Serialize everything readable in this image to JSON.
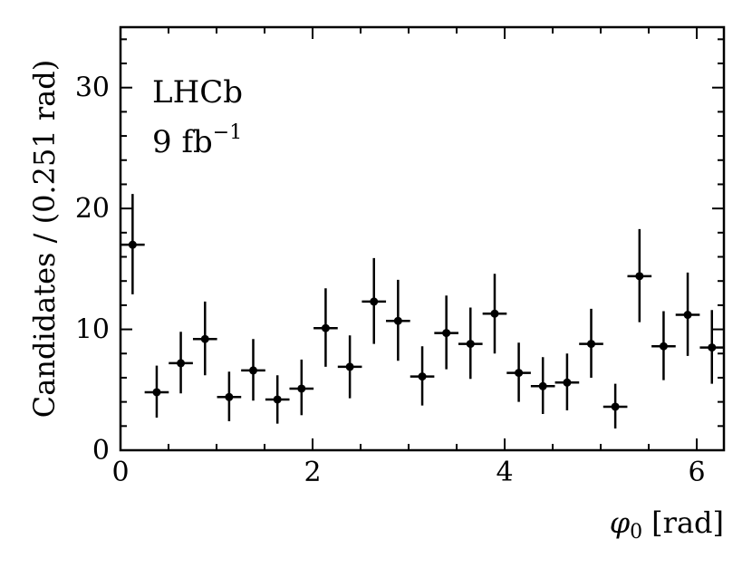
{
  "chart_data": {
    "type": "scatter",
    "style": "points-with-error-bars",
    "xlabel_symbol": "φ",
    "xlabel_subscript": "0",
    "xlabel_unit": "[rad]",
    "ylabel": "Candidates / (0.251 rad)",
    "xlim": [
      0,
      6.283
    ],
    "ylim": [
      0,
      35
    ],
    "xticks": [
      0,
      2,
      4,
      6
    ],
    "yticks": [
      0,
      10,
      20,
      30
    ],
    "x_minor_step": 0.5,
    "y_minor_step": 2,
    "bin_width": 0.2513,
    "annotations": {
      "experiment": "LHCb",
      "lumi_value": "9 fb",
      "lumi_exponent": "−1"
    },
    "series": [
      {
        "color": "#000000",
        "points": [
          {
            "x": 0.126,
            "y": 17.0,
            "err_up": 4.2,
            "err_down": 4.1
          },
          {
            "x": 0.377,
            "y": 4.8,
            "err_up": 2.2,
            "err_down": 2.1
          },
          {
            "x": 0.628,
            "y": 7.2,
            "err_up": 2.6,
            "err_down": 2.5
          },
          {
            "x": 0.88,
            "y": 9.2,
            "err_up": 3.1,
            "err_down": 3.0
          },
          {
            "x": 1.131,
            "y": 4.4,
            "err_up": 2.1,
            "err_down": 2.0
          },
          {
            "x": 1.382,
            "y": 6.6,
            "err_up": 2.6,
            "err_down": 2.5
          },
          {
            "x": 1.634,
            "y": 4.2,
            "err_up": 2.0,
            "err_down": 2.0
          },
          {
            "x": 1.885,
            "y": 5.1,
            "err_up": 2.4,
            "err_down": 2.2
          },
          {
            "x": 2.136,
            "y": 10.1,
            "err_up": 3.3,
            "err_down": 3.2
          },
          {
            "x": 2.388,
            "y": 6.9,
            "err_up": 2.6,
            "err_down": 2.6
          },
          {
            "x": 2.639,
            "y": 12.3,
            "err_up": 3.6,
            "err_down": 3.5
          },
          {
            "x": 2.89,
            "y": 10.7,
            "err_up": 3.4,
            "err_down": 3.3
          },
          {
            "x": 3.142,
            "y": 6.1,
            "err_up": 2.5,
            "err_down": 2.4
          },
          {
            "x": 3.393,
            "y": 9.7,
            "err_up": 3.1,
            "err_down": 3.0
          },
          {
            "x": 3.644,
            "y": 8.8,
            "err_up": 3.0,
            "err_down": 2.9
          },
          {
            "x": 3.896,
            "y": 11.3,
            "err_up": 3.3,
            "err_down": 3.3
          },
          {
            "x": 4.147,
            "y": 6.4,
            "err_up": 2.5,
            "err_down": 2.4
          },
          {
            "x": 4.398,
            "y": 5.3,
            "err_up": 2.4,
            "err_down": 2.3
          },
          {
            "x": 4.65,
            "y": 5.6,
            "err_up": 2.4,
            "err_down": 2.3
          },
          {
            "x": 4.901,
            "y": 8.8,
            "err_up": 2.9,
            "err_down": 2.8
          },
          {
            "x": 5.152,
            "y": 3.6,
            "err_up": 1.9,
            "err_down": 1.8
          },
          {
            "x": 5.404,
            "y": 14.4,
            "err_up": 3.9,
            "err_down": 3.8
          },
          {
            "x": 5.655,
            "y": 8.6,
            "err_up": 2.9,
            "err_down": 2.8
          },
          {
            "x": 5.906,
            "y": 11.2,
            "err_up": 3.5,
            "err_down": 3.4
          },
          {
            "x": 6.158,
            "y": 8.5,
            "err_up": 3.1,
            "err_down": 3.0
          }
        ]
      }
    ]
  }
}
